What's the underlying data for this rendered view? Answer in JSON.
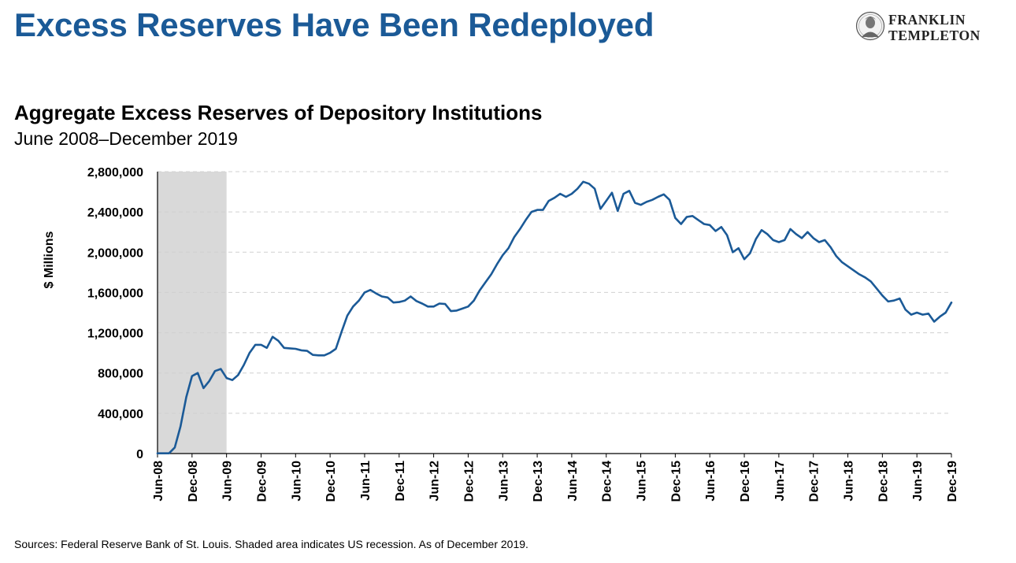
{
  "page": {
    "title": "Excess Reserves Have Been Redeployed",
    "footer": "Sources: Federal Reserve Bank of St. Louis. Shaded area indicates US recession. As of December 2019."
  },
  "logo": {
    "line1": "FRANKLIN",
    "line2": "TEMPLETON"
  },
  "colors": {
    "title": "#1b5a97",
    "series": "#1b5a97",
    "recession": "#d9d9d9"
  },
  "chart_data": {
    "type": "line",
    "title": "Aggregate Excess Reserves of Depository Institutions",
    "subtitle": "June 2008–December 2019",
    "ylabel": "$ Millions",
    "xlabel": "",
    "ylim": [
      0,
      2800000
    ],
    "yticks": [
      0,
      400000,
      800000,
      1200000,
      1600000,
      2000000,
      2400000,
      2800000
    ],
    "ytick_labels": [
      "0",
      "400,000",
      "800,000",
      "1,200,000",
      "1,600,000",
      "2,000,000",
      "2,400,000",
      "2,800,000"
    ],
    "xlim": [
      "2008-06",
      "2019-12"
    ],
    "xtick_labels": [
      "Jun-08",
      "Dec-08",
      "Jun-09",
      "Dec-09",
      "Jun-10",
      "Dec-10",
      "Jun-11",
      "Dec-11",
      "Jun-12",
      "Dec-12",
      "Jun-13",
      "Dec-13",
      "Jun-14",
      "Dec-14",
      "Jun-15",
      "Dec-15",
      "Jun-16",
      "Dec-16",
      "Jun-17",
      "Dec-17",
      "Jun-18",
      "Dec-18",
      "Jun-19",
      "Dec-19"
    ],
    "grid": true,
    "legend": "none",
    "recession_band": [
      "2008-06",
      "2009-06"
    ],
    "series": [
      {
        "x": [
          "2008-06",
          "2008-07",
          "2008-08",
          "2008-09",
          "2008-10",
          "2008-11",
          "2008-12",
          "2009-01",
          "2009-02",
          "2009-03",
          "2009-04",
          "2009-05",
          "2009-06",
          "2009-07",
          "2009-08",
          "2009-09",
          "2009-10",
          "2009-11",
          "2009-12",
          "2010-01",
          "2010-02",
          "2010-03",
          "2010-04",
          "2010-05",
          "2010-06",
          "2010-07",
          "2010-08",
          "2010-09",
          "2010-10",
          "2010-11",
          "2010-12",
          "2011-01",
          "2011-02",
          "2011-03",
          "2011-04",
          "2011-05",
          "2011-06",
          "2011-07",
          "2011-08",
          "2011-09",
          "2011-10",
          "2011-11",
          "2011-12",
          "2012-01",
          "2012-02",
          "2012-03",
          "2012-04",
          "2012-05",
          "2012-06",
          "2012-07",
          "2012-08",
          "2012-09",
          "2012-10",
          "2012-11",
          "2012-12",
          "2013-01",
          "2013-02",
          "2013-03",
          "2013-04",
          "2013-05",
          "2013-06",
          "2013-07",
          "2013-08",
          "2013-09",
          "2013-10",
          "2013-11",
          "2013-12",
          "2014-01",
          "2014-02",
          "2014-03",
          "2014-04",
          "2014-05",
          "2014-06",
          "2014-07",
          "2014-08",
          "2014-09",
          "2014-10",
          "2014-11",
          "2014-12",
          "2015-01",
          "2015-02",
          "2015-03",
          "2015-04",
          "2015-05",
          "2015-06",
          "2015-07",
          "2015-08",
          "2015-09",
          "2015-10",
          "2015-11",
          "2015-12",
          "2016-01",
          "2016-02",
          "2016-03",
          "2016-04",
          "2016-05",
          "2016-06",
          "2016-07",
          "2016-08",
          "2016-09",
          "2016-10",
          "2016-11",
          "2016-12",
          "2017-01",
          "2017-02",
          "2017-03",
          "2017-04",
          "2017-05",
          "2017-06",
          "2017-07",
          "2017-08",
          "2017-09",
          "2017-10",
          "2017-11",
          "2017-12",
          "2018-01",
          "2018-02",
          "2018-03",
          "2018-04",
          "2018-05",
          "2018-06",
          "2018-07",
          "2018-08",
          "2018-09",
          "2018-10",
          "2018-11",
          "2018-12",
          "2019-01",
          "2019-02",
          "2019-03",
          "2019-04",
          "2019-05",
          "2019-06",
          "2019-07",
          "2019-08",
          "2019-09",
          "2019-10",
          "2019-11",
          "2019-12"
        ],
        "y": [
          2000,
          2000,
          2000,
          60000,
          270000,
          560000,
          770000,
          800000,
          650000,
          720000,
          820000,
          840000,
          750000,
          730000,
          780000,
          880000,
          1000000,
          1080000,
          1080000,
          1050000,
          1160000,
          1120000,
          1050000,
          1045000,
          1040000,
          1025000,
          1020000,
          980000,
          975000,
          975000,
          1000000,
          1040000,
          1210000,
          1370000,
          1460000,
          1520000,
          1600000,
          1625000,
          1590000,
          1560000,
          1550000,
          1500000,
          1505000,
          1520000,
          1560000,
          1515000,
          1490000,
          1460000,
          1460000,
          1490000,
          1485000,
          1415000,
          1420000,
          1440000,
          1460000,
          1520000,
          1620000,
          1700000,
          1780000,
          1880000,
          1970000,
          2040000,
          2150000,
          2230000,
          2320000,
          2400000,
          2420000,
          2420000,
          2510000,
          2540000,
          2580000,
          2550000,
          2580000,
          2630000,
          2700000,
          2680000,
          2630000,
          2430000,
          2510000,
          2590000,
          2410000,
          2580000,
          2610000,
          2490000,
          2470000,
          2500000,
          2520000,
          2550000,
          2575000,
          2520000,
          2340000,
          2280000,
          2350000,
          2360000,
          2320000,
          2280000,
          2270000,
          2210000,
          2250000,
          2170000,
          2000000,
          2040000,
          1930000,
          1990000,
          2130000,
          2220000,
          2180000,
          2120000,
          2100000,
          2120000,
          2230000,
          2180000,
          2140000,
          2200000,
          2140000,
          2100000,
          2120000,
          2050000,
          1960000,
          1900000,
          1860000,
          1820000,
          1780000,
          1750000,
          1710000,
          1640000,
          1570000,
          1510000,
          1520000,
          1540000,
          1430000,
          1380000,
          1400000,
          1380000,
          1390000,
          1310000,
          1360000,
          1400000,
          1500000
        ]
      }
    ]
  }
}
